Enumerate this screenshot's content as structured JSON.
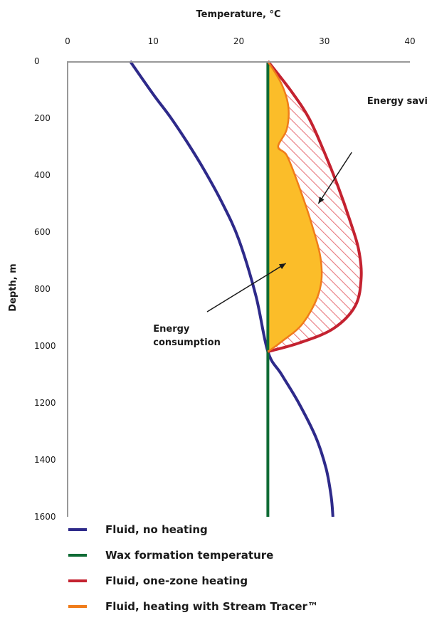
{
  "chart_data": {
    "type": "line",
    "xlabel": "Temperature, °C",
    "ylabel": "Depth, m",
    "xlim": [
      0,
      40
    ],
    "ylim": [
      0,
      1600
    ],
    "x_ticks": [
      0,
      10,
      20,
      30,
      40
    ],
    "y_ticks": [
      0,
      200,
      400,
      600,
      800,
      1000,
      1200,
      1400,
      1600
    ],
    "x_axis_position": "top",
    "y_axis_inverted": true,
    "grid": false,
    "legend_position": "bottom",
    "series": [
      {
        "name": "Fluid, no heating",
        "color": "#2e2a8a",
        "points": [
          [
            7.3,
            0
          ],
          [
            10,
            116
          ],
          [
            12,
            196
          ],
          [
            14,
            286
          ],
          [
            16,
            384
          ],
          [
            18,
            494
          ],
          [
            20,
            626
          ],
          [
            22,
            824
          ],
          [
            23.4,
            1020
          ],
          [
            25,
            1100
          ],
          [
            27,
            1200
          ],
          [
            29,
            1320
          ],
          [
            30.2,
            1430
          ],
          [
            30.8,
            1530
          ],
          [
            31,
            1600
          ]
        ]
      },
      {
        "name": "Wax formation temperature",
        "color": "#0f6b35",
        "points": [
          [
            23.4,
            0
          ],
          [
            23.4,
            1600
          ]
        ]
      },
      {
        "name": "Fluid, one-zone heating",
        "color": "#c42230",
        "points": [
          [
            23.4,
            0
          ],
          [
            26,
            100
          ],
          [
            28.2,
            200
          ],
          [
            30,
            320
          ],
          [
            31.6,
            440
          ],
          [
            33,
            560
          ],
          [
            34,
            660
          ],
          [
            34.3,
            760
          ],
          [
            33.6,
            860
          ],
          [
            31,
            940
          ],
          [
            27,
            990
          ],
          [
            23.4,
            1020
          ]
        ]
      },
      {
        "name": "Fluid, heating with Stream Tracer™",
        "color": "#f07c1a",
        "points": [
          [
            23.4,
            0
          ],
          [
            25,
            80
          ],
          [
            25.8,
            160
          ],
          [
            25.6,
            240
          ],
          [
            24.6,
            300
          ],
          [
            25.6,
            330
          ],
          [
            26.8,
            420
          ],
          [
            28.4,
            560
          ],
          [
            29.6,
            700
          ],
          [
            29.4,
            810
          ],
          [
            27.5,
            920
          ],
          [
            25,
            985
          ],
          [
            23.4,
            1020
          ]
        ]
      }
    ],
    "areas": [
      {
        "name": "Energy consumption",
        "fill": "#fbbd29",
        "between": [
          "Wax formation temperature",
          "Fluid, heating with Stream Tracer™"
        ]
      },
      {
        "name": "Energy savings",
        "fill": "hatched #e8787e",
        "between": [
          "Fluid, heating with Stream Tracer™",
          "Fluid, one-zone heating"
        ]
      }
    ],
    "annotations": [
      {
        "lines": [
          "Energy savings"
        ],
        "x": 35,
        "y": 150,
        "arrow_from": [
          33.2,
          320
        ],
        "arrow_to": [
          29.3,
          500
        ]
      },
      {
        "lines": [
          "Energy",
          "consumption"
        ],
        "x": 10,
        "y": 950,
        "arrow_from": [
          16.3,
          880
        ],
        "arrow_to": [
          25.5,
          710
        ]
      }
    ]
  }
}
